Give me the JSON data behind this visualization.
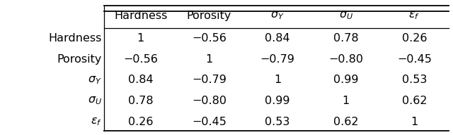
{
  "col_headers": [
    "Hardness",
    "Porosity",
    "$\\sigma_Y$",
    "$\\sigma_U$",
    "$\\varepsilon_f$"
  ],
  "row_headers": [
    "Hardness",
    "Porosity",
    "$\\sigma_Y$",
    "$\\sigma_U$",
    "$\\varepsilon_f$"
  ],
  "matrix": [
    [
      "1",
      "−0.56",
      "0.84",
      "0.78",
      "0.26"
    ],
    [
      "−0.56",
      "1",
      "−0.79",
      "−0.80",
      "−0.45"
    ],
    [
      "0.84",
      "−0.79",
      "1",
      "0.99",
      "0.53"
    ],
    [
      "0.78",
      "−0.80",
      "0.99",
      "1",
      "0.62"
    ],
    [
      "0.26",
      "−0.45",
      "0.53",
      "0.62",
      "1"
    ]
  ],
  "background_color": "#ffffff",
  "font_size": 11.5,
  "fig_width": 6.4,
  "fig_height": 1.92,
  "dpi": 100
}
